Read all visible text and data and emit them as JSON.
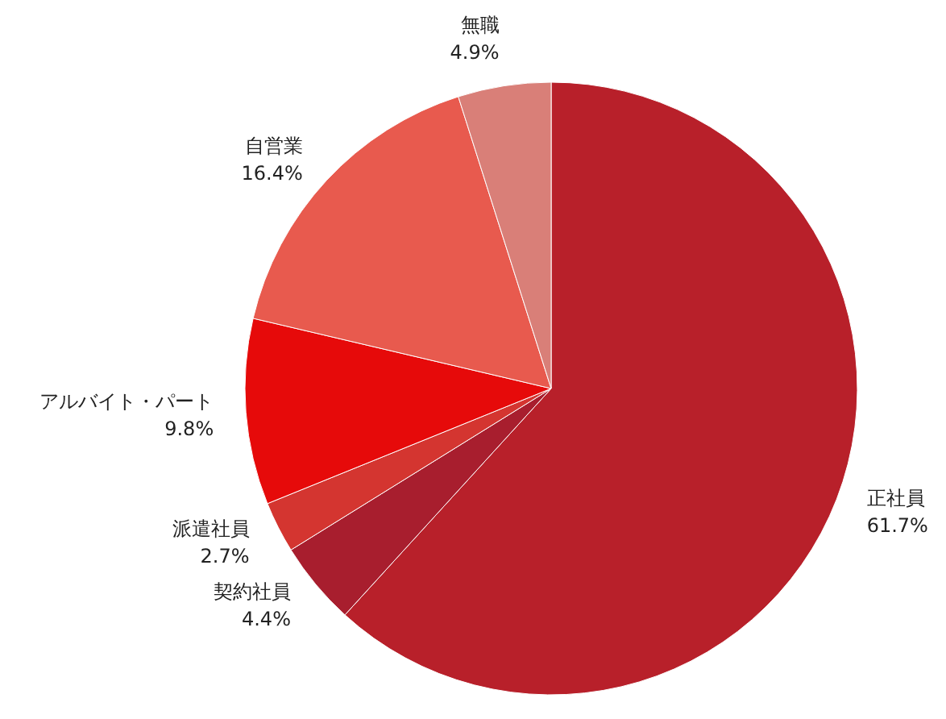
{
  "chart_data": {
    "type": "pie",
    "categories": [
      "正社員",
      "契約社員",
      "派遣社員",
      "アルバイト・パート",
      "自営業",
      "無職"
    ],
    "values": [
      61.7,
      4.4,
      2.7,
      9.8,
      16.4,
      4.9
    ],
    "value_labels": [
      "61.7%",
      "4.4%",
      "2.7%",
      "9.8%",
      "16.4%",
      "4.9%"
    ],
    "colors": [
      "#b8202a",
      "#a81e2e",
      "#d43530",
      "#e60a0a",
      "#e85a4e",
      "#d97f78"
    ]
  }
}
